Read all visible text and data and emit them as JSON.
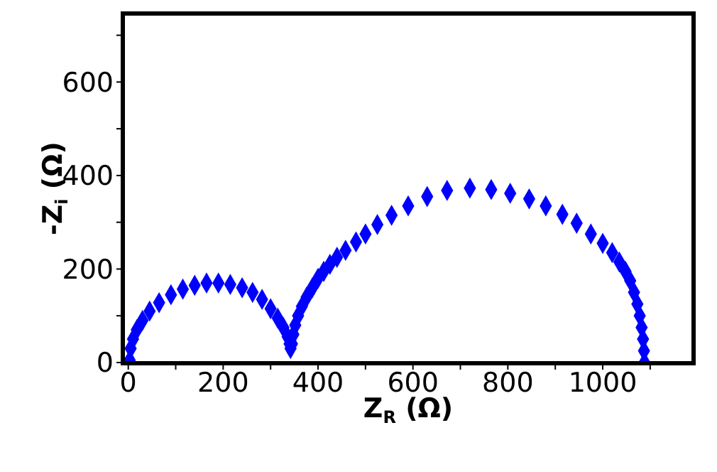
{
  "chart_data": {
    "type": "scatter",
    "xlabel": "Z$_{R}$ (Ω)",
    "ylabel": "-Z$_{i}$ (Ω)",
    "marker": "diamond",
    "xlim": [
      -10,
      1190
    ],
    "ylim": [
      0,
      745
    ],
    "xticks": [
      0,
      {
        "value": 100,
        "label": null
      },
      200,
      {
        "value": 300,
        "label": null
      },
      400,
      {
        "value": 500,
        "label": null
      },
      600,
      {
        "value": 700,
        "label": null
      },
      800,
      {
        "value": 900,
        "label": null
      },
      1000,
      {
        "value": 1100,
        "label": null
      }
    ],
    "yticks": [
      0,
      {
        "value": 100,
        "label": null
      },
      200,
      {
        "value": 300,
        "label": null
      },
      400,
      {
        "value": 500,
        "label": null
      },
      600,
      {
        "value": 700,
        "label": null
      }
    ],
    "series": [
      {
        "color": "#0000ff",
        "x": [
          3,
          5,
          10,
          18,
          30,
          45,
          65,
          90,
          115,
          140,
          165,
          190,
          215,
          240,
          262,
          282,
          300,
          315,
          327,
          336,
          340,
          342,
          345,
          348,
          352,
          358,
          366,
          376,
          388,
          400,
          412,
          425,
          440,
          458,
          480,
          500,
          525,
          555,
          590,
          630,
          672,
          720,
          765,
          805,
          845,
          880,
          915,
          945,
          975,
          1000,
          1020,
          1035,
          1048,
          1058,
          1066,
          1073,
          1078,
          1082,
          1085,
          1087,
          1088
        ],
        "values": [
          5,
          30,
          50,
          70,
          90,
          110,
          128,
          145,
          157,
          165,
          170,
          170,
          167,
          160,
          150,
          135,
          115,
          95,
          75,
          55,
          40,
          30,
          40,
          60,
          80,
          100,
          120,
          140,
          160,
          180,
          195,
          210,
          225,
          240,
          258,
          275,
          295,
          315,
          335,
          355,
          368,
          373,
          370,
          362,
          350,
          335,
          317,
          298,
          275,
          255,
          235,
          215,
          195,
          175,
          150,
          125,
          100,
          75,
          50,
          25,
          0
        ]
      }
    ]
  }
}
